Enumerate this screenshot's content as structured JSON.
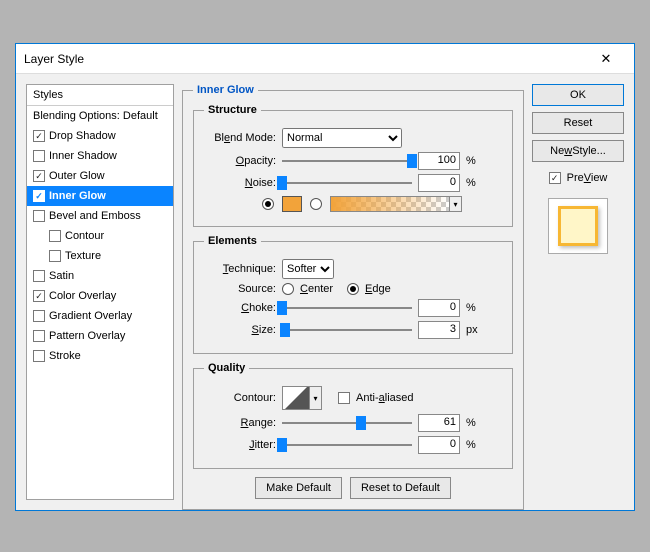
{
  "window": {
    "title": "Layer Style"
  },
  "colors": {
    "accent": "#0a84ff",
    "swatch": "#f2a33a"
  },
  "styles": {
    "header": "Styles",
    "blending": "Blending Options: Default",
    "items": [
      {
        "label": "Drop Shadow",
        "checked": true
      },
      {
        "label": "Inner Shadow",
        "checked": false
      },
      {
        "label": "Outer Glow",
        "checked": true
      },
      {
        "label": "Inner Glow",
        "checked": true,
        "selected": true
      },
      {
        "label": "Bevel and Emboss",
        "checked": false
      },
      {
        "label": "Contour",
        "checked": false,
        "indent": true
      },
      {
        "label": "Texture",
        "checked": false,
        "indent": true
      },
      {
        "label": "Satin",
        "checked": false
      },
      {
        "label": "Color Overlay",
        "checked": true
      },
      {
        "label": "Gradient Overlay",
        "checked": false
      },
      {
        "label": "Pattern Overlay",
        "checked": false
      },
      {
        "label": "Stroke",
        "checked": false
      }
    ]
  },
  "panel": {
    "title": "Inner Glow",
    "structure": {
      "legend": "Structure",
      "blend_label": "Blend Mode:",
      "blend_u": "e",
      "blend_value": "Normal",
      "opacity_label": "Opacity:",
      "opacity_u": "O",
      "opacity": "100",
      "opacity_pct": 100,
      "pct": "%",
      "noise_label": "Noise:",
      "noise_u": "N",
      "noise": "0",
      "noise_pct": 0
    },
    "elements": {
      "legend": "Elements",
      "technique_label": "Technique:",
      "technique_u": "T",
      "technique_value": "Softer",
      "source_label": "Source:",
      "center": "Center",
      "center_u": "C",
      "edge": "Edge",
      "edge_u": "E",
      "source_value": "edge",
      "choke_label": "Choke:",
      "choke_u": "C",
      "choke": "0",
      "choke_pct": 0,
      "size_label": "Size:",
      "size_u": "S",
      "size": "3",
      "size_px": "px",
      "size_pct": 2
    },
    "quality": {
      "legend": "Quality",
      "contour_label": "Contour:",
      "aa_label": "Anti-aliased",
      "aa_u": "a",
      "aa": false,
      "range_label": "Range:",
      "range_u": "R",
      "range": "61",
      "range_pct": 61,
      "jitter_label": "Jitter:",
      "jitter_u": "J",
      "jitter": "0",
      "jitter_pct": 0
    },
    "make_default": "Make Default",
    "reset_default": "Reset to Default"
  },
  "right": {
    "ok": "OK",
    "reset": "Reset",
    "new_style": "New Style...",
    "new_style_u": "w",
    "preview": "Preview",
    "preview_u": "V",
    "preview_on": true
  }
}
